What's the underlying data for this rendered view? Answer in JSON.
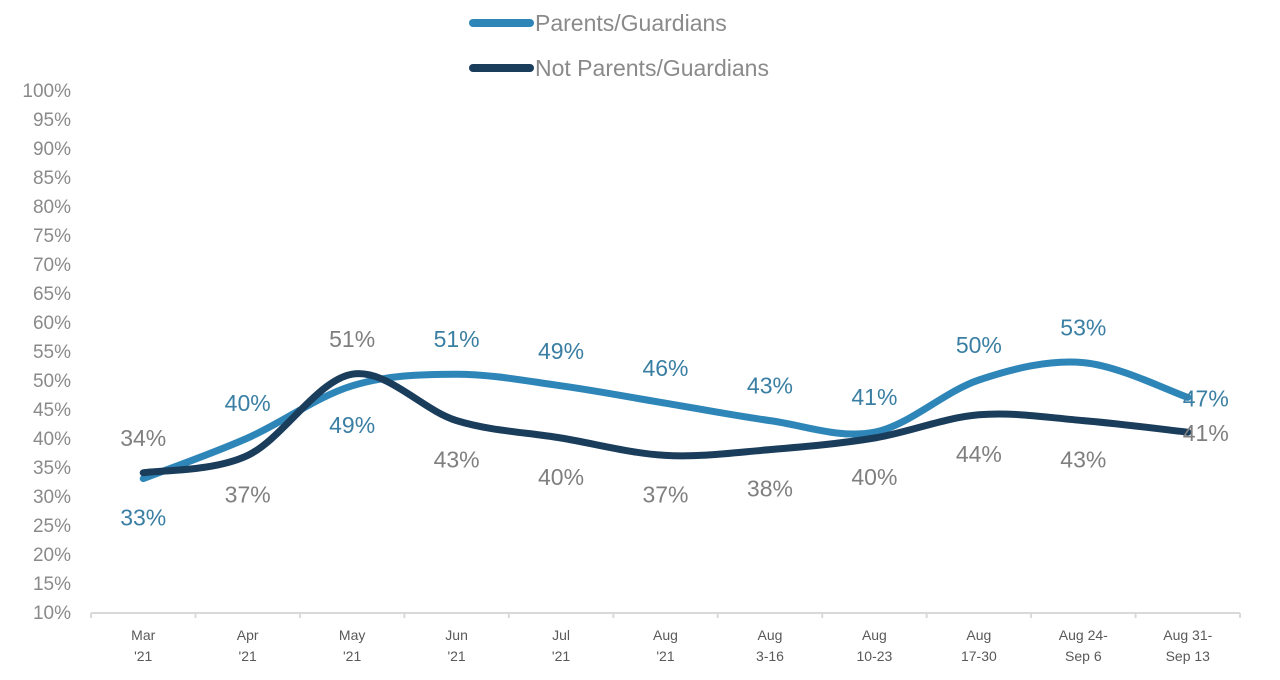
{
  "chart_data": {
    "type": "line",
    "title": "",
    "xlabel": "",
    "ylabel": "",
    "ylim": [
      10,
      100
    ],
    "y_tick_step": 5,
    "y_tick_format": "percent",
    "grid": false,
    "smoothed": true,
    "legend_position": "top-center",
    "categories": [
      [
        "Mar",
        "'21"
      ],
      [
        "Apr",
        "'21"
      ],
      [
        "May",
        "'21"
      ],
      [
        "Jun",
        "'21"
      ],
      [
        "Jul",
        "'21"
      ],
      [
        "Aug",
        "'21"
      ],
      [
        "Aug",
        "3-16"
      ],
      [
        "Aug",
        "10-23"
      ],
      [
        "Aug",
        "17-30"
      ],
      [
        "Aug 24-",
        "Sep 6"
      ],
      [
        "Aug 31-",
        "Sep 13"
      ]
    ],
    "series": [
      {
        "name": "Parents/Guardians",
        "color": "#2e86b8",
        "label_color": "#3a7fa3",
        "values": [
          33,
          40,
          49,
          51,
          49,
          46,
          43,
          41,
          50,
          53,
          47
        ],
        "labels": [
          "33%",
          "40%",
          "49%",
          "51%",
          "49%",
          "46%",
          "43%",
          "41%",
          "50%",
          "53%",
          "47%"
        ]
      },
      {
        "name": "Not Parents/Guardians",
        "color": "#1b3d5c",
        "label_color": "#7f7f7f",
        "values": [
          34,
          37,
          51,
          43,
          40,
          37,
          38,
          40,
          44,
          43,
          41
        ],
        "labels": [
          "34%",
          "37%",
          "51%",
          "43%",
          "40%",
          "37%",
          "38%",
          "40%",
          "44%",
          "43%",
          "41%"
        ]
      }
    ]
  }
}
